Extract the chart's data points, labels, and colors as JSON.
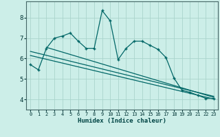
{
  "xlabel": "Humidex (Indice chaleur)",
  "background_color": "#cceee8",
  "grid_color": "#aad4cc",
  "line_color": "#006666",
  "xlim": [
    -0.5,
    23.5
  ],
  "ylim": [
    3.5,
    8.8
  ],
  "xticks": [
    0,
    1,
    2,
    3,
    4,
    5,
    6,
    7,
    8,
    9,
    10,
    11,
    12,
    13,
    14,
    15,
    16,
    17,
    18,
    19,
    20,
    21,
    22,
    23
  ],
  "yticks": [
    4,
    5,
    6,
    7,
    8
  ],
  "main_x": [
    0,
    1,
    2,
    3,
    4,
    5,
    6,
    7,
    8,
    9,
    10,
    11,
    12,
    13,
    14,
    15,
    16,
    17,
    18,
    19,
    20,
    21,
    22,
    23
  ],
  "main_y": [
    5.7,
    5.45,
    6.5,
    7.0,
    7.1,
    7.25,
    6.85,
    6.5,
    6.5,
    8.35,
    7.85,
    5.95,
    6.5,
    6.85,
    6.85,
    6.65,
    6.45,
    6.05,
    5.05,
    4.45,
    4.35,
    4.2,
    4.05,
    4.05
  ],
  "trend1_x": [
    0,
    23
  ],
  "trend1_y": [
    6.35,
    4.15
  ],
  "trend2_x": [
    0,
    23
  ],
  "trend2_y": [
    6.15,
    4.02
  ],
  "trend3_x": [
    2,
    23
  ],
  "trend3_y": [
    6.55,
    4.1
  ]
}
